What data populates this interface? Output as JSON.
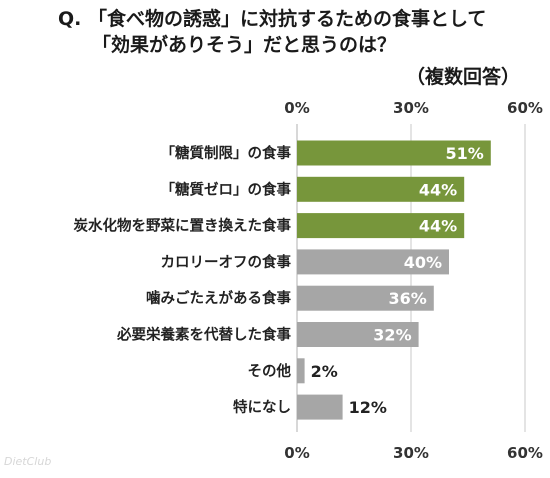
{
  "chart_data": {
    "type": "bar",
    "orientation": "horizontal",
    "title_lines": [
      "Q. 「食べ物の誘惑」に対抗するための食事として",
      "「効果がありそう」だと思うのは？"
    ],
    "subtitle": "（複数回答）",
    "categories": [
      "「糖質制限」の食事",
      "「糖質ゼロ」の食事",
      "炭水化物を野菜に置き換えた食事",
      "カロリーオフの食事",
      "噛みごたえがある食事",
      "必要栄養素を代替した食事",
      "その他",
      "特になし"
    ],
    "values": [
      51,
      44,
      44,
      40,
      36,
      32,
      2,
      12
    ],
    "value_labels": [
      "51%",
      "44%",
      "44%",
      "40%",
      "36%",
      "32%",
      "2%",
      "12%"
    ],
    "highlight_count": 3,
    "xlim": [
      0,
      60
    ],
    "ticks": [
      0,
      30,
      60
    ],
    "tick_labels": [
      "0%",
      "30%",
      "60%"
    ],
    "grid": true,
    "colors": {
      "highlight": "#77963b",
      "normal": "#a6a6a6",
      "grid": "#c9c9c9",
      "label_inside": "#ffffff",
      "label_outside": "#222222"
    }
  },
  "watermark": "DietClub"
}
